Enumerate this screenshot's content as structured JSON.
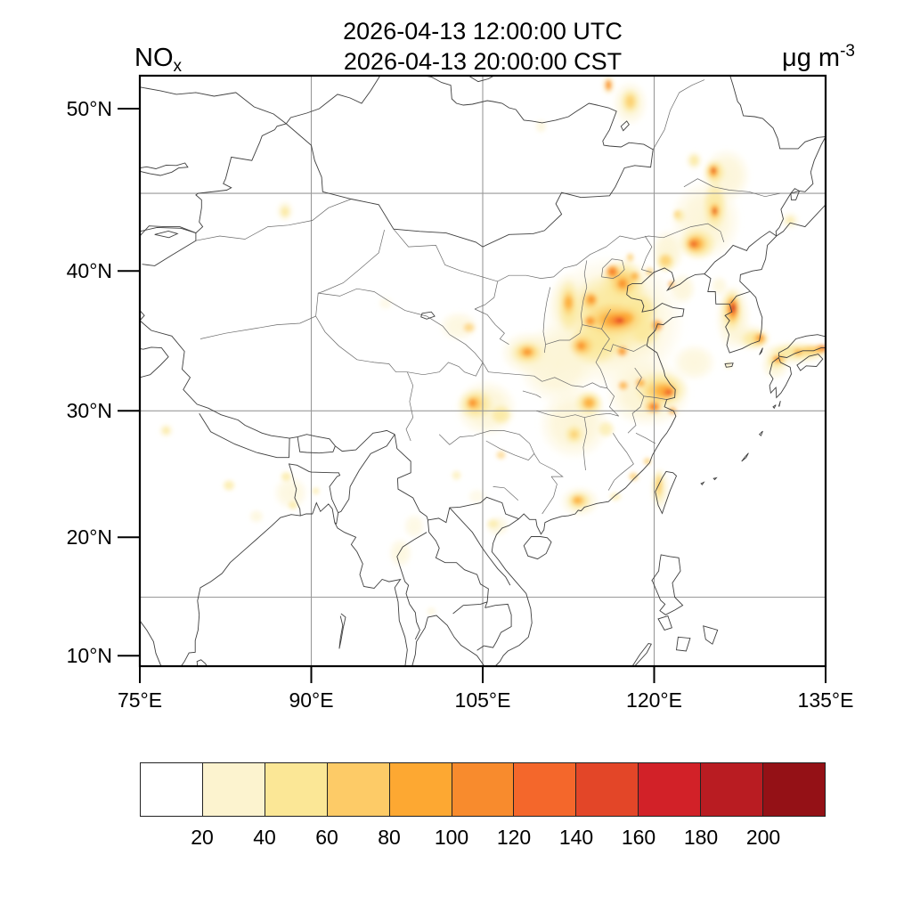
{
  "header": {
    "title_utc": "2026-04-13 12:00:00 UTC",
    "title_cst": "2026-04-13 20:00:00 CST",
    "variable": "NO",
    "variable_sub": "x",
    "units": "μg m",
    "units_exponent": "-3"
  },
  "map": {
    "lat_ticks": [
      {
        "label": "50°N",
        "lat": 50
      },
      {
        "label": "40°N",
        "lat": 40
      },
      {
        "label": "30°N",
        "lat": 30
      },
      {
        "label": "20°N",
        "lat": 20
      },
      {
        "label": "10°N",
        "lat": 10
      }
    ],
    "lon_ticks": [
      {
        "label": "75°E",
        "lon": 75
      },
      {
        "label": "90°E",
        "lon": 90
      },
      {
        "label": "105°E",
        "lon": 105
      },
      {
        "label": "120°E",
        "lon": 120
      },
      {
        "label": "135°E",
        "lon": 135
      }
    ],
    "grid_lats": [
      45,
      30,
      15
    ],
    "grid_lons": [
      90,
      105,
      120
    ]
  },
  "colorbar": {
    "colors": [
      "#FFFFFF",
      "#FCF3CF",
      "#FBE796",
      "#FDCB67",
      "#FDA832",
      "#F88B2D",
      "#F4672B",
      "#E34628",
      "#D22128",
      "#B91C22",
      "#941116"
    ],
    "labels": [
      "20",
      "40",
      "60",
      "80",
      "100",
      "120",
      "140",
      "160",
      "180",
      "200"
    ]
  },
  "chart_data": {
    "type": "heatmap",
    "title": "2026-04-13 12:00:00 UTC / 2026-04-13 20:00:00 CST",
    "variable": "NOx",
    "units": "μg m-3",
    "projection": "mercator",
    "lon_range": [
      75,
      135
    ],
    "lat_range": [
      9.1,
      51.8
    ],
    "xlabel_ticks": [
      "75°E",
      "90°E",
      "105°E",
      "120°E",
      "135°E"
    ],
    "ylabel_ticks": [
      "10°N",
      "20°N",
      "30°N",
      "40°N",
      "50°N"
    ],
    "grid": true,
    "levels": [
      20,
      40,
      60,
      80,
      100,
      120,
      140,
      160,
      180,
      200
    ],
    "palette": [
      "#FFFFFF",
      "#FCF3CF",
      "#FBE796",
      "#FDCB67",
      "#FDA832",
      "#F88B2D",
      "#F4672B",
      "#E34628",
      "#D22128",
      "#B91C22",
      "#941116"
    ],
    "hotspot_format": [
      "lon",
      "lat",
      "rx_deg",
      "ry_deg",
      "palette_index",
      "opacity"
    ],
    "hotspots": [
      [
        116.5,
        36.5,
        6.3,
        4.8,
        1,
        1
      ],
      [
        111.5,
        33.5,
        3.5,
        3.0,
        1,
        0.9
      ],
      [
        119.5,
        31.3,
        3.8,
        2.6,
        1,
        1
      ],
      [
        113.0,
        29.0,
        3.2,
        2.8,
        1,
        0.9
      ],
      [
        105.3,
        30.2,
        2.8,
        2.2,
        1,
        0.9
      ],
      [
        108.9,
        34.3,
        2.4,
        1.6,
        1,
        0.9
      ],
      [
        112.4,
        37.8,
        1.6,
        2.2,
        1,
        0.9
      ],
      [
        124.5,
        43.3,
        3.2,
        2.6,
        1,
        0.85
      ],
      [
        126.3,
        46.1,
        2.2,
        1.7,
        1,
        0.85
      ],
      [
        122.5,
        38.8,
        1.2,
        1.1,
        1,
        0.8
      ],
      [
        123.5,
        33.6,
        2.0,
        1.4,
        1,
        0.75
      ],
      [
        126.9,
        36.8,
        1.6,
        2.4,
        1,
        0.9
      ],
      [
        128.5,
        35.4,
        1.8,
        1.0,
        1,
        0.85
      ],
      [
        132.3,
        34.3,
        3.2,
        0.9,
        1,
        0.9
      ],
      [
        130.6,
        33.4,
        1.3,
        1.1,
        1,
        0.85
      ],
      [
        120.5,
        23.9,
        0.9,
        1.8,
        1,
        0.9
      ],
      [
        113.5,
        22.9,
        1.8,
        1.3,
        1,
        0.85
      ],
      [
        117.9,
        50.3,
        1.6,
        1.3,
        1,
        0.8
      ],
      [
        102.9,
        36.2,
        1.8,
        1.1,
        1,
        0.7
      ],
      [
        87.7,
        43.9,
        0.8,
        0.7,
        1,
        0.8
      ],
      [
        97.8,
        18.7,
        1.1,
        1.3,
        1,
        0.7
      ],
      [
        99.0,
        20.9,
        1.0,
        1.1,
        1,
        0.6
      ],
      [
        88.2,
        23.6,
        1.6,
        1.4,
        1,
        0.7
      ],
      [
        85.2,
        21.7,
        0.7,
        0.6,
        1,
        0.7
      ],
      [
        77.3,
        28.5,
        0.7,
        0.6,
        1,
        0.75
      ],
      [
        106.3,
        20.9,
        1.1,
        0.9,
        1,
        0.7
      ],
      [
        121.2,
        41.3,
        1.5,
        1.5,
        1,
        0.9
      ],
      [
        125.7,
        39.0,
        0.8,
        0.7,
        1,
        0.7
      ],
      [
        110.1,
        49.0,
        0.55,
        0.45,
        1,
        0.7
      ],
      [
        100.5,
        13.8,
        0.5,
        0.45,
        1,
        0.6
      ],
      [
        104.5,
        23.3,
        0.9,
        0.7,
        1,
        0.5
      ],
      [
        131.9,
        43.3,
        0.9,
        0.6,
        1,
        0.7
      ],
      [
        123.5,
        47.0,
        0.8,
        0.6,
        1,
        0.8
      ],
      [
        116.0,
        51.3,
        0.7,
        0.6,
        1,
        0.8
      ],
      [
        96.5,
        37.8,
        0.7,
        0.5,
        1,
        0.5
      ],
      [
        116.3,
        37.0,
        4.0,
        3.0,
        2,
        0.95
      ],
      [
        114.8,
        34.9,
        2.4,
        1.6,
        2,
        0.9
      ],
      [
        117.3,
        39.3,
        2.0,
        1.5,
        2,
        0.95
      ],
      [
        120.6,
        31.6,
        2.4,
        1.4,
        2,
        0.95
      ],
      [
        112.5,
        37.6,
        1.0,
        1.9,
        2,
        0.9
      ],
      [
        108.9,
        34.3,
        1.5,
        0.9,
        2,
        0.9
      ],
      [
        104.4,
        30.5,
        1.6,
        1.2,
        2,
        0.9
      ],
      [
        106.6,
        29.7,
        1.0,
        0.8,
        2,
        0.85
      ],
      [
        123.8,
        41.8,
        1.7,
        1.1,
        2,
        0.9
      ],
      [
        125.3,
        44.2,
        1.1,
        1.6,
        2,
        0.9
      ],
      [
        125.3,
        46.3,
        1.0,
        0.8,
        2,
        0.9
      ],
      [
        126.8,
        37.3,
        1.0,
        1.6,
        2,
        0.95
      ],
      [
        128.8,
        35.3,
        1.3,
        0.7,
        2,
        0.9
      ],
      [
        132.6,
        34.35,
        2.6,
        0.6,
        2,
        0.9
      ],
      [
        130.7,
        33.7,
        0.9,
        0.6,
        2,
        0.9
      ],
      [
        120.4,
        24.1,
        0.5,
        1.4,
        2,
        0.9
      ],
      [
        113.4,
        22.95,
        1.1,
        0.8,
        2,
        0.9
      ],
      [
        114.3,
        30.6,
        1.3,
        1.0,
        2,
        0.9
      ],
      [
        113.0,
        28.2,
        0.9,
        0.8,
        2,
        0.85
      ],
      [
        115.8,
        28.6,
        0.8,
        0.7,
        2,
        0.7
      ],
      [
        117.9,
        50.4,
        0.9,
        0.75,
        2,
        0.9
      ],
      [
        119.2,
        35.8,
        1.4,
        1.1,
        2,
        0.9
      ],
      [
        118.8,
        37.3,
        1.5,
        1.2,
        2,
        0.9
      ],
      [
        82.8,
        24.2,
        0.6,
        0.5,
        2,
        0.8
      ],
      [
        87.8,
        24.9,
        0.55,
        0.45,
        2,
        0.8
      ],
      [
        88.4,
        22.6,
        0.5,
        0.4,
        2,
        0.8
      ],
      [
        90.4,
        23.75,
        0.4,
        0.35,
        2,
        0.7
      ],
      [
        77.3,
        28.5,
        0.4,
        0.35,
        2,
        0.8
      ],
      [
        121.0,
        40.6,
        0.9,
        0.7,
        2,
        0.85
      ],
      [
        122.2,
        43.6,
        0.6,
        0.5,
        2,
        0.7
      ],
      [
        87.7,
        43.85,
        0.45,
        0.4,
        2,
        0.85
      ],
      [
        102.7,
        25.0,
        0.5,
        0.45,
        2,
        0.6
      ],
      [
        105.9,
        21.1,
        0.6,
        0.45,
        2,
        0.7
      ],
      [
        126.5,
        33.4,
        0.35,
        0.3,
        2,
        0.7
      ],
      [
        131.9,
        43.3,
        0.45,
        0.3,
        2,
        0.7
      ],
      [
        116.6,
        23.3,
        0.6,
        0.4,
        2,
        0.7
      ],
      [
        123.5,
        47.0,
        0.5,
        0.4,
        2,
        0.8
      ],
      [
        116.5,
        36.7,
        2.6,
        1.2,
        3,
        0.95
      ],
      [
        117.3,
        39.2,
        1.2,
        0.9,
        3,
        0.9
      ],
      [
        114.4,
        38.0,
        0.8,
        0.7,
        3,
        0.9
      ],
      [
        113.7,
        34.8,
        1.1,
        0.8,
        3,
        0.9
      ],
      [
        120.6,
        31.5,
        1.6,
        0.9,
        3,
        0.95
      ],
      [
        119.9,
        30.3,
        0.9,
        0.6,
        3,
        0.9
      ],
      [
        112.5,
        37.8,
        0.6,
        1.0,
        3,
        0.9
      ],
      [
        108.9,
        34.35,
        1.0,
        0.6,
        3,
        0.9
      ],
      [
        104.3,
        30.55,
        0.9,
        0.7,
        3,
        0.9
      ],
      [
        114.3,
        30.6,
        0.8,
        0.6,
        3,
        0.9
      ],
      [
        123.7,
        41.8,
        1.1,
        0.7,
        3,
        0.9
      ],
      [
        125.3,
        43.9,
        0.6,
        0.6,
        3,
        0.9
      ],
      [
        125.2,
        46.35,
        0.6,
        0.5,
        3,
        0.9
      ],
      [
        126.85,
        37.35,
        0.7,
        1.1,
        3,
        0.95
      ],
      [
        129.2,
        35.3,
        0.7,
        0.5,
        3,
        0.9
      ],
      [
        131.0,
        33.85,
        0.6,
        0.4,
        3,
        0.9
      ],
      [
        133.9,
        34.5,
        1.3,
        0.4,
        3,
        0.9
      ],
      [
        113.35,
        23.0,
        0.7,
        0.5,
        3,
        0.9
      ],
      [
        120.4,
        24.2,
        0.35,
        0.9,
        3,
        0.85
      ],
      [
        118.2,
        24.9,
        0.5,
        0.4,
        3,
        0.85
      ],
      [
        119.4,
        26.1,
        0.4,
        0.35,
        3,
        0.85
      ],
      [
        113.0,
        28.2,
        0.45,
        0.4,
        3,
        0.8
      ],
      [
        103.8,
        36.1,
        0.6,
        0.4,
        3,
        0.8
      ],
      [
        117.9,
        40.9,
        0.4,
        0.35,
        3,
        0.8
      ],
      [
        119.6,
        39.95,
        0.45,
        0.35,
        3,
        0.8
      ],
      [
        121.0,
        40.7,
        0.6,
        0.45,
        3,
        0.85
      ],
      [
        117.9,
        50.4,
        0.5,
        0.45,
        3,
        0.9
      ],
      [
        122.0,
        43.7,
        0.35,
        0.3,
        3,
        0.7
      ],
      [
        106.6,
        26.6,
        0.5,
        0.4,
        3,
        0.7
      ],
      [
        116.6,
        36.65,
        1.7,
        0.7,
        4,
        0.95
      ],
      [
        116.35,
        39.95,
        0.7,
        0.55,
        4,
        0.95
      ],
      [
        117.25,
        39.15,
        0.6,
        0.5,
        4,
        0.95
      ],
      [
        114.5,
        38.05,
        0.55,
        0.45,
        4,
        0.9
      ],
      [
        113.65,
        34.8,
        0.6,
        0.45,
        4,
        0.9
      ],
      [
        117.2,
        34.4,
        0.55,
        0.45,
        4,
        0.9
      ],
      [
        114.4,
        36.55,
        0.6,
        0.45,
        4,
        0.9
      ],
      [
        120.25,
        36.25,
        0.6,
        0.5,
        4,
        0.9
      ],
      [
        120.9,
        31.5,
        1.1,
        0.6,
        4,
        0.95
      ],
      [
        118.8,
        32.1,
        0.5,
        0.4,
        4,
        0.9
      ],
      [
        120.0,
        30.3,
        0.6,
        0.45,
        4,
        0.9
      ],
      [
        121.6,
        30.0,
        0.45,
        0.35,
        4,
        0.85
      ],
      [
        108.9,
        34.35,
        0.6,
        0.4,
        4,
        0.9
      ],
      [
        104.15,
        30.6,
        0.55,
        0.45,
        4,
        0.9
      ],
      [
        114.3,
        30.6,
        0.55,
        0.45,
        4,
        0.9
      ],
      [
        112.5,
        37.85,
        0.45,
        0.55,
        4,
        0.9
      ],
      [
        123.6,
        41.8,
        0.8,
        0.5,
        4,
        0.9
      ],
      [
        125.3,
        43.9,
        0.4,
        0.45,
        4,
        0.9
      ],
      [
        125.2,
        46.35,
        0.45,
        0.4,
        4,
        0.9
      ],
      [
        126.85,
        37.4,
        0.55,
        0.9,
        4,
        0.95
      ],
      [
        129.25,
        35.35,
        0.45,
        0.35,
        4,
        0.9
      ],
      [
        130.75,
        33.85,
        0.45,
        0.3,
        4,
        0.9
      ],
      [
        134.6,
        34.6,
        0.6,
        0.35,
        4,
        0.9
      ],
      [
        132.6,
        34.35,
        0.5,
        0.3,
        4,
        0.85
      ],
      [
        117.3,
        31.9,
        0.5,
        0.4,
        4,
        0.85
      ],
      [
        118.3,
        39.65,
        0.45,
        0.35,
        4,
        0.9
      ],
      [
        116.0,
        51.3,
        0.4,
        0.4,
        4,
        0.9
      ],
      [
        113.3,
        23.0,
        0.45,
        0.35,
        4,
        0.85
      ],
      [
        117.5,
        36.8,
        0.9,
        0.5,
        4,
        0.9
      ],
      [
        121.5,
        39.1,
        0.35,
        0.3,
        4,
        0.85
      ],
      [
        116.8,
        36.6,
        1.1,
        0.45,
        5,
        0.95
      ],
      [
        116.35,
        39.95,
        0.45,
        0.35,
        5,
        0.9
      ],
      [
        117.2,
        39.15,
        0.4,
        0.3,
        5,
        0.9
      ],
      [
        114.5,
        38.05,
        0.35,
        0.3,
        5,
        0.85
      ],
      [
        113.6,
        34.8,
        0.35,
        0.3,
        5,
        0.85
      ],
      [
        121.2,
        31.4,
        0.6,
        0.4,
        5,
        0.95
      ],
      [
        119.95,
        30.3,
        0.45,
        0.35,
        5,
        0.9
      ],
      [
        104.1,
        30.6,
        0.35,
        0.3,
        5,
        0.9
      ],
      [
        108.9,
        34.35,
        0.4,
        0.25,
        5,
        0.85
      ],
      [
        123.5,
        41.8,
        0.55,
        0.35,
        5,
        0.9
      ],
      [
        126.9,
        37.45,
        0.45,
        0.7,
        5,
        0.95
      ],
      [
        130.7,
        33.8,
        0.3,
        0.2,
        5,
        0.85
      ],
      [
        134.75,
        34.62,
        0.4,
        0.25,
        5,
        0.9
      ],
      [
        125.2,
        46.38,
        0.3,
        0.28,
        5,
        0.9
      ],
      [
        125.3,
        43.9,
        0.3,
        0.3,
        5,
        0.9
      ],
      [
        129.3,
        35.4,
        0.3,
        0.25,
        5,
        0.85
      ],
      [
        120.3,
        36.25,
        0.35,
        0.3,
        5,
        0.85
      ],
      [
        117.2,
        34.4,
        0.3,
        0.25,
        5,
        0.8
      ],
      [
        116.0,
        51.32,
        0.25,
        0.28,
        5,
        0.85
      ],
      [
        114.4,
        36.55,
        0.35,
        0.28,
        5,
        0.85
      ],
      [
        116.9,
        36.6,
        0.6,
        0.3,
        6,
        0.9
      ],
      [
        121.25,
        31.4,
        0.35,
        0.25,
        6,
        0.9
      ],
      [
        126.9,
        37.45,
        0.32,
        0.5,
        6,
        0.95
      ],
      [
        119.95,
        30.3,
        0.28,
        0.22,
        6,
        0.85
      ],
      [
        123.45,
        41.78,
        0.3,
        0.2,
        6,
        0.85
      ],
      [
        134.85,
        34.63,
        0.25,
        0.18,
        6,
        0.85
      ],
      [
        116.35,
        39.95,
        0.25,
        0.2,
        6,
        0.8
      ],
      [
        117.0,
        36.6,
        0.35,
        0.2,
        7,
        0.9
      ],
      [
        126.9,
        37.45,
        0.24,
        0.38,
        7,
        0.95
      ],
      [
        121.3,
        31.38,
        0.22,
        0.16,
        7,
        0.85
      ],
      [
        125.2,
        46.4,
        0.18,
        0.18,
        7,
        0.9
      ],
      [
        125.3,
        43.9,
        0.18,
        0.2,
        7,
        0.9
      ],
      [
        123.45,
        41.75,
        0.2,
        0.14,
        7,
        0.8
      ],
      [
        126.9,
        37.47,
        0.17,
        0.28,
        8,
        0.95
      ],
      [
        117.05,
        36.6,
        0.2,
        0.12,
        8,
        0.85
      ],
      [
        125.2,
        46.4,
        0.1,
        0.1,
        8,
        0.85
      ],
      [
        126.9,
        37.5,
        0.12,
        0.2,
        9,
        0.95
      ],
      [
        125.3,
        43.9,
        0.09,
        0.1,
        9,
        0.85
      ],
      [
        126.9,
        37.52,
        0.07,
        0.12,
        10,
        0.95
      ]
    ]
  }
}
